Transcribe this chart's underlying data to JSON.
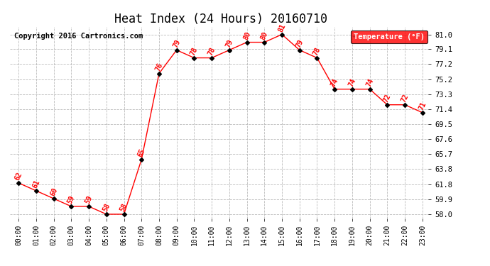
{
  "title": "Heat Index (24 Hours) 20160710",
  "copyright_text": "Copyright 2016 Cartronics.com",
  "legend_label": "Temperature (°F)",
  "x_labels": [
    "00:00",
    "01:00",
    "02:00",
    "03:00",
    "04:00",
    "05:00",
    "06:00",
    "07:00",
    "08:00",
    "09:00",
    "10:00",
    "11:00",
    "12:00",
    "13:00",
    "14:00",
    "15:00",
    "16:00",
    "17:00",
    "18:00",
    "19:00",
    "20:00",
    "21:00",
    "22:00",
    "23:00"
  ],
  "y_values": [
    62,
    61,
    60,
    59,
    59,
    58,
    58,
    65,
    76,
    79,
    78,
    78,
    79,
    80,
    80,
    81,
    79,
    78,
    74,
    74,
    74,
    72,
    72,
    71
  ],
  "y_ticks": [
    58.0,
    59.9,
    61.8,
    63.8,
    65.7,
    67.6,
    69.5,
    71.4,
    73.3,
    75.2,
    77.2,
    79.1,
    81.0
  ],
  "y_min": 57.5,
  "y_max": 82.0,
  "line_color": "red",
  "marker_color": "black",
  "marker_style": "D",
  "marker_size": 3,
  "label_color": "red",
  "label_fontsize": 7,
  "background_color": "white",
  "grid_color": "#bbbbbb",
  "title_fontsize": 12,
  "copyright_fontsize": 7.5,
  "tick_fontsize": 7.5,
  "x_tick_fontsize": 7
}
